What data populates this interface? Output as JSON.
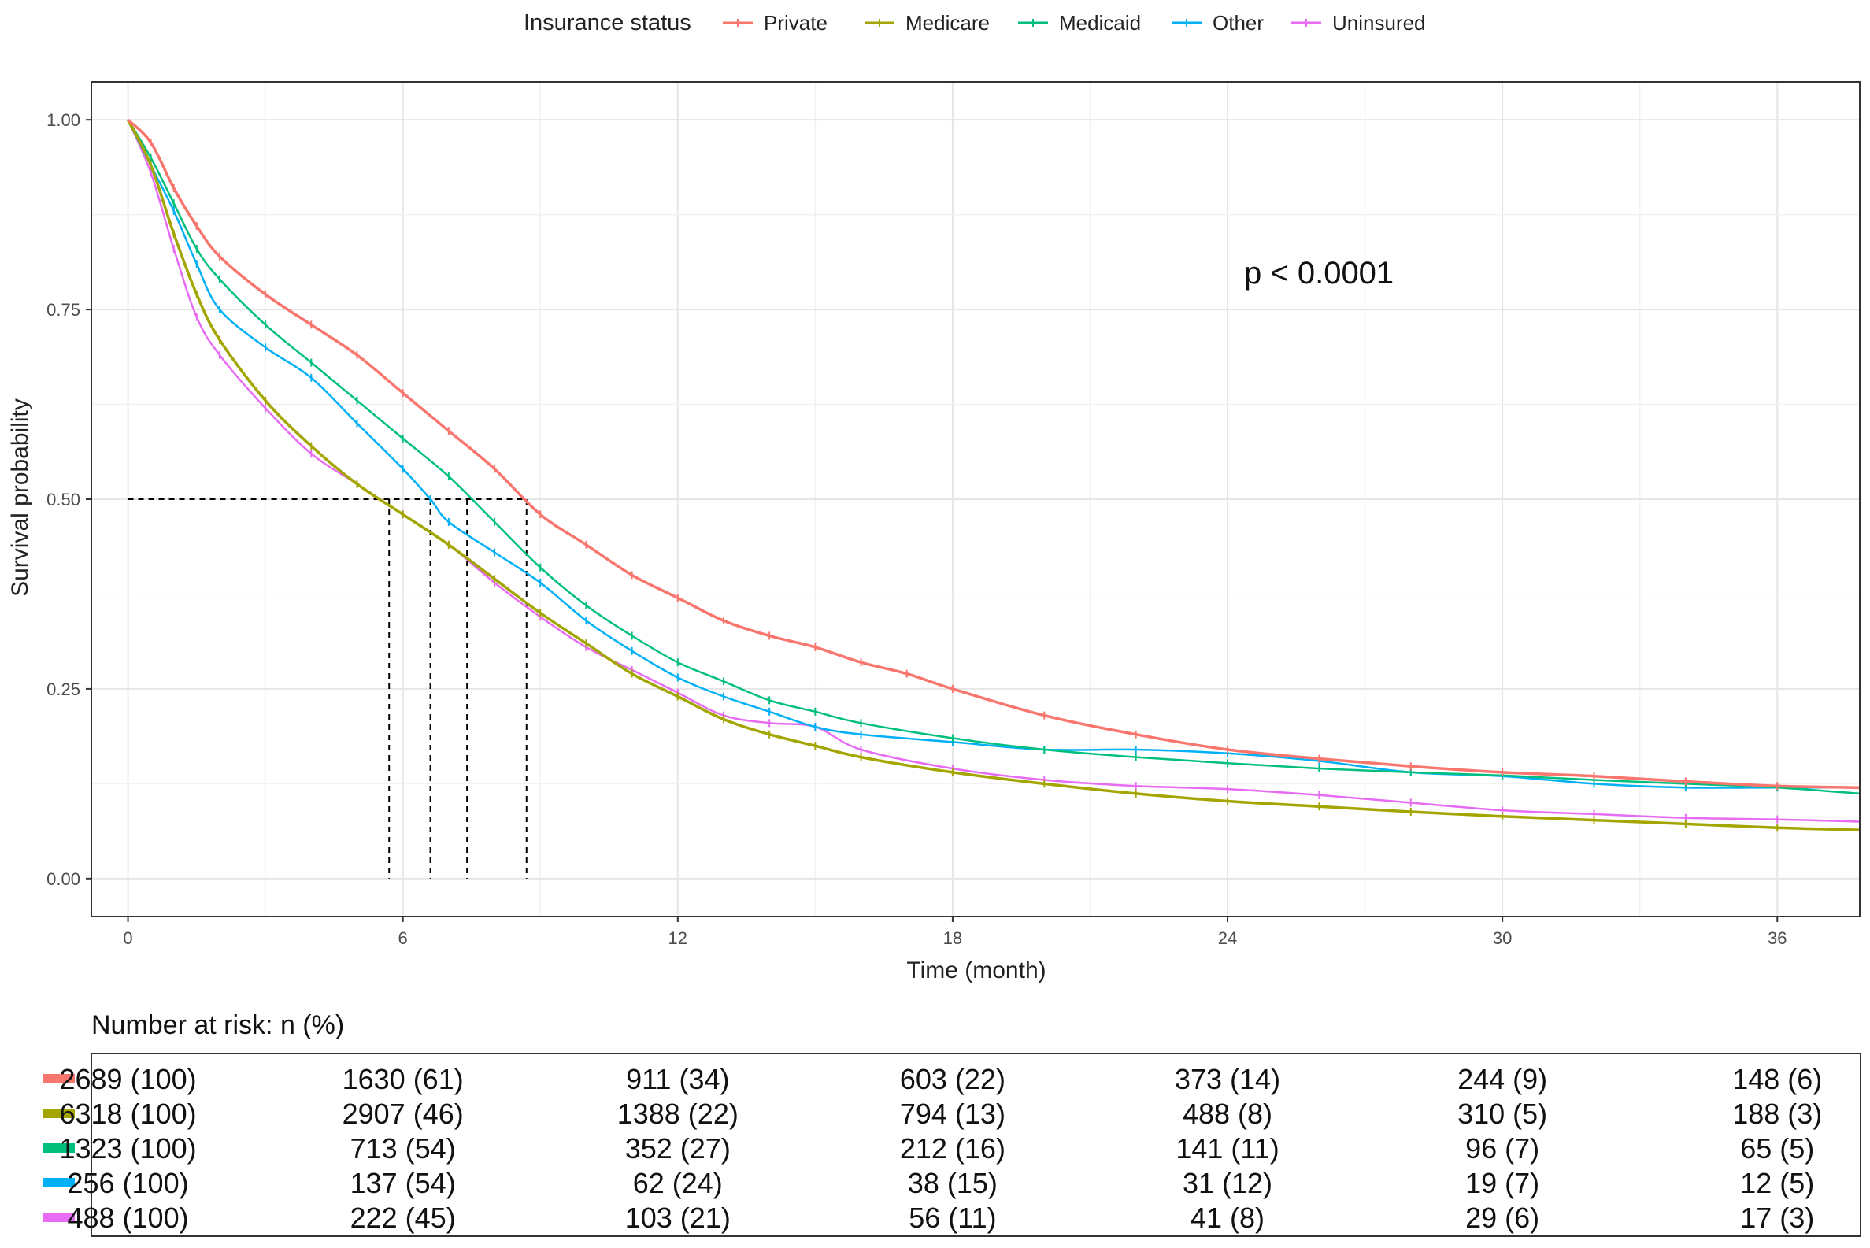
{
  "chart_data": {
    "type": "line",
    "subtype": "kaplan-meier",
    "xlabel": "Time (month)",
    "ylabel": "Survival probability",
    "xlim": [
      -0.8,
      37.8
    ],
    "ylim": [
      -0.05,
      1.05
    ],
    "x_ticks": [
      0,
      6,
      12,
      18,
      24,
      30,
      36
    ],
    "x_tick_labels": [
      "0",
      "6",
      "12",
      "18",
      "24",
      "30",
      "36"
    ],
    "y_ticks": [
      0.0,
      0.25,
      0.5,
      0.75,
      1.0
    ],
    "y_tick_labels": [
      "0.00",
      "0.25",
      "0.50",
      "0.75",
      "1.00"
    ],
    "grid": true,
    "legend": {
      "title": "Insurance status",
      "position": "top",
      "entries": [
        "Private",
        "Medicare",
        "Medicaid",
        "Other",
        "Uninsured"
      ]
    },
    "annotation": "p < 0.0001",
    "median_line_y": 0.5,
    "medians": [
      {
        "series": "Medicare",
        "x": 5.7
      },
      {
        "series": "Other",
        "x": 6.6
      },
      {
        "series": "Medicaid",
        "x": 7.4
      },
      {
        "series": "Private",
        "x": 8.7
      }
    ],
    "series": [
      {
        "name": "Private",
        "color": "#F8766D",
        "x": [
          0,
          0.5,
          1,
          1.5,
          2,
          3,
          4,
          5,
          6,
          7,
          8,
          9,
          10,
          11,
          12,
          13,
          14,
          15,
          16,
          17,
          18,
          20,
          22,
          24,
          26,
          28,
          30,
          32,
          34,
          36,
          37.8
        ],
        "y": [
          1.0,
          0.97,
          0.91,
          0.86,
          0.82,
          0.77,
          0.73,
          0.69,
          0.64,
          0.59,
          0.54,
          0.48,
          0.44,
          0.4,
          0.37,
          0.34,
          0.32,
          0.305,
          0.285,
          0.27,
          0.25,
          0.215,
          0.19,
          0.17,
          0.158,
          0.148,
          0.14,
          0.135,
          0.128,
          0.122,
          0.12
        ]
      },
      {
        "name": "Medicare",
        "color": "#A3A500",
        "x": [
          0,
          0.5,
          1,
          1.5,
          2,
          3,
          4,
          5,
          6,
          7,
          8,
          9,
          10,
          11,
          12,
          13,
          14,
          15,
          16,
          18,
          20,
          22,
          24,
          26,
          28,
          30,
          32,
          34,
          36,
          37.8
        ],
        "y": [
          1.0,
          0.94,
          0.85,
          0.77,
          0.71,
          0.63,
          0.57,
          0.52,
          0.48,
          0.44,
          0.395,
          0.35,
          0.31,
          0.27,
          0.24,
          0.21,
          0.19,
          0.175,
          0.16,
          0.14,
          0.125,
          0.112,
          0.102,
          0.095,
          0.088,
          0.082,
          0.077,
          0.072,
          0.067,
          0.064
        ]
      },
      {
        "name": "Medicaid",
        "color": "#00BF7D",
        "x": [
          0,
          0.5,
          1,
          1.5,
          2,
          3,
          4,
          5,
          6,
          7,
          8,
          9,
          10,
          11,
          12,
          13,
          14,
          15,
          16,
          18,
          20,
          22,
          24,
          26,
          28,
          30,
          32,
          34,
          36,
          37.8
        ],
        "y": [
          1.0,
          0.95,
          0.89,
          0.83,
          0.79,
          0.73,
          0.68,
          0.63,
          0.58,
          0.53,
          0.47,
          0.41,
          0.36,
          0.32,
          0.285,
          0.26,
          0.235,
          0.22,
          0.205,
          0.185,
          0.17,
          0.16,
          0.152,
          0.145,
          0.14,
          0.136,
          0.13,
          0.125,
          0.12,
          0.112
        ]
      },
      {
        "name": "Other",
        "color": "#00B0F6",
        "x": [
          0,
          0.5,
          1,
          1.5,
          2,
          3,
          4,
          5,
          6,
          6.6,
          7,
          8,
          9,
          10,
          11,
          12,
          13,
          14,
          15,
          16,
          18,
          20,
          22,
          24,
          26,
          28,
          30,
          32,
          34,
          36,
          37.8
        ],
        "y": [
          1.0,
          0.94,
          0.88,
          0.81,
          0.75,
          0.7,
          0.66,
          0.6,
          0.54,
          0.5,
          0.47,
          0.43,
          0.39,
          0.34,
          0.3,
          0.265,
          0.24,
          0.22,
          0.2,
          0.19,
          0.18,
          0.17,
          0.17,
          0.165,
          0.155,
          0.14,
          0.135,
          0.125,
          0.12,
          0.12,
          0.12
        ]
      },
      {
        "name": "Uninsured",
        "color": "#E76BF3",
        "x": [
          0,
          0.5,
          1,
          1.5,
          2,
          3,
          4,
          5,
          6,
          7,
          8,
          9,
          10,
          11,
          12,
          13,
          14,
          15,
          16,
          18,
          20,
          22,
          24,
          26,
          28,
          30,
          32,
          34,
          36,
          37.8
        ],
        "y": [
          1.0,
          0.93,
          0.83,
          0.74,
          0.69,
          0.62,
          0.56,
          0.52,
          0.48,
          0.44,
          0.39,
          0.345,
          0.305,
          0.275,
          0.245,
          0.215,
          0.205,
          0.2,
          0.17,
          0.145,
          0.13,
          0.122,
          0.118,
          0.11,
          0.1,
          0.09,
          0.085,
          0.08,
          0.078,
          0.075
        ]
      }
    ]
  },
  "risk_table": {
    "title": "Number at risk: n (%)",
    "times": [
      0,
      6,
      12,
      18,
      24,
      30,
      36
    ],
    "rows": [
      {
        "name": "Private",
        "color": "#F8766D",
        "values": [
          "2689 (100)",
          "1630 (61)",
          "911 (34)",
          "603 (22)",
          "373 (14)",
          "244 (9)",
          "148 (6)"
        ]
      },
      {
        "name": "Medicare",
        "color": "#A3A500",
        "values": [
          "6318 (100)",
          "2907 (46)",
          "1388 (22)",
          "794 (13)",
          "488 (8)",
          "310 (5)",
          "188 (3)"
        ]
      },
      {
        "name": "Medicaid",
        "color": "#00BF7D",
        "values": [
          "1323 (100)",
          "713 (54)",
          "352 (27)",
          "212 (16)",
          "141 (11)",
          "96 (7)",
          "65 (5)"
        ]
      },
      {
        "name": "Other",
        "color": "#00B0F6",
        "values": [
          "256 (100)",
          "137 (54)",
          "62 (24)",
          "38 (15)",
          "31 (12)",
          "19 (7)",
          "12 (5)"
        ]
      },
      {
        "name": "Uninsured",
        "color": "#E76BF3",
        "values": [
          "488 (100)",
          "222 (45)",
          "103 (21)",
          "56 (11)",
          "41 (8)",
          "29 (6)",
          "17 (3)"
        ]
      }
    ]
  }
}
